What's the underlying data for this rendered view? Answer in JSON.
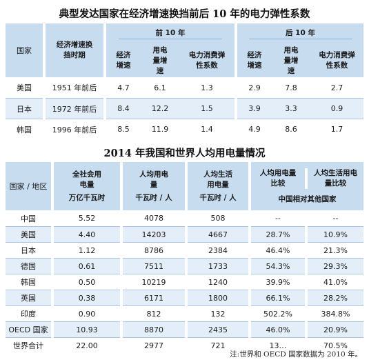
{
  "table1": {
    "title": "典型发达国家在经济增速换挡前后 10 年的电力弹性系数",
    "header": {
      "country": "国家",
      "period": "经济增速换挡时期",
      "before": "前 10 年",
      "after": "后 10 年",
      "cols": [
        "经济增速",
        "用电量增速",
        "电力消费弹性系数"
      ]
    },
    "rows": [
      {
        "country": "美国",
        "period": "1951 年前后",
        "before": [
          "4.7",
          "6.1",
          "1.3"
        ],
        "after": [
          "2.9",
          "7.8",
          "2.7"
        ]
      },
      {
        "country": "日本",
        "period": "1972 年前后",
        "before": [
          "8.4",
          "12.2",
          "1.5"
        ],
        "after": [
          "3.9",
          "3.3",
          "0.9"
        ]
      },
      {
        "country": "韩国",
        "period": "1996 年前后",
        "before": [
          "8.5",
          "11.9",
          "1.4"
        ],
        "after": [
          "4.9",
          "8.6",
          "1.7"
        ]
      }
    ]
  },
  "table2": {
    "title": "2014 年我国和世界人均用电量情况",
    "header": {
      "country": "国家 / 地区",
      "total": "全社会用电量",
      "total_unit": "万亿千瓦时",
      "per_capita": "人均用电量",
      "per_capita_unit": "千瓦时 / 人",
      "per_capita_life": "人均生活用电量",
      "per_capita_life_unit": "千瓦时 / 人",
      "ratio": "人均用电量比较",
      "ratio_life": "人均生活用电量比较",
      "ratio_sub": "中国相对其他国家"
    },
    "rows": [
      {
        "country": "中国",
        "total": "5.52",
        "per_capita": "4078",
        "life": "508",
        "ratio": "--",
        "ratio_life": "--"
      },
      {
        "country": "美国",
        "total": "4.40",
        "per_capita": "14203",
        "life": "4667",
        "ratio": "28.7%",
        "ratio_life": "10.9%"
      },
      {
        "country": "日本",
        "total": "1.12",
        "per_capita": "8786",
        "life": "2384",
        "ratio": "46.4%",
        "ratio_life": "21.3%"
      },
      {
        "country": "德国",
        "total": "0.61",
        "per_capita": "7511",
        "life": "1733",
        "ratio": "54.3%",
        "ratio_life": "29.3%"
      },
      {
        "country": "韩国",
        "total": "0.50",
        "per_capita": "10219",
        "life": "1240",
        "ratio": "39.9%",
        "ratio_life": "41.0%"
      },
      {
        "country": "英国",
        "total": "0.38",
        "per_capita": "6171",
        "life": "1800",
        "ratio": "66.1%",
        "ratio_life": "28.2%"
      },
      {
        "country": "印度",
        "total": "0.90",
        "per_capita": "812",
        "life": "132",
        "ratio": "502.2%",
        "ratio_life": "384.8%"
      },
      {
        "country": "OECD 国家",
        "total": "10.93",
        "per_capita": "8870",
        "life": "2435",
        "ratio": "46.0%",
        "ratio_life": "20.9%"
      },
      {
        "country": "世界合计",
        "total": "22.00",
        "per_capita": "2977",
        "life": "721",
        "ratio": "13…",
        "ratio_life": "70.5%"
      }
    ]
  },
  "note": "注:世界和 OECD 国家数据为 2010 年。"
}
